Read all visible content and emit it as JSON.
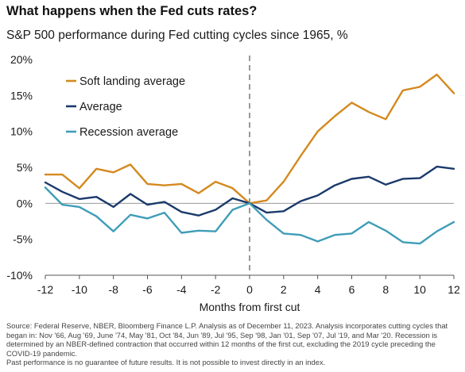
{
  "title": "What happens when the Fed cuts rates?",
  "subtitle": "S&P 500 performance during Fed cutting cycles since 1965, %",
  "footnote": [
    "Source: Federal Reserve, NBER, Bloomberg Finance L.P. Analysis as of December 11, 2023. Analysis incorporates cutting cycles that began in: Nov '66, Aug '69, June '74, May '81, Oct '84, Jun '89, Jul '95, Sep '98, Jan '01, Sep '07, Jul '19, and Mar '20. Recession is determined by an NBER-defined contraction that occurred within 12 months of the first cut, excluding the 2019 cycle preceding the COVID-19 pandemic.",
    "Past performance is no guarantee of future results. It is not possible to invest directly in an index."
  ],
  "chart_data": {
    "type": "line",
    "xlabel": "Months from first cut",
    "ylabel": "",
    "xlim": [
      -12,
      12
    ],
    "ylim": [
      -10,
      20
    ],
    "x": [
      -12,
      -11,
      -10,
      -9,
      -8,
      -7,
      -6,
      -5,
      -4,
      -3,
      -2,
      -1,
      0,
      1,
      2,
      3,
      4,
      5,
      6,
      7,
      8,
      9,
      10,
      11,
      12
    ],
    "x_ticks": [
      "-12",
      "-10",
      "-8",
      "-6",
      "-4",
      "-2",
      "0",
      "2",
      "4",
      "6",
      "8",
      "10",
      "12"
    ],
    "y_ticks": [
      "20%",
      "15%",
      "10%",
      "5%",
      "0%",
      "-5%",
      "-10%"
    ],
    "grid": false,
    "zero_line": true,
    "vertical_marker": {
      "x": 0,
      "style": "dashed"
    },
    "legend_position": "top-left",
    "series": [
      {
        "name": "Soft landing average",
        "color": "#d4891f",
        "values": [
          4.0,
          4.0,
          2.1,
          4.8,
          4.3,
          5.4,
          2.7,
          2.5,
          2.7,
          1.4,
          3.0,
          2.1,
          0.0,
          0.4,
          3.0,
          6.6,
          10.0,
          12.1,
          14.0,
          12.7,
          11.7,
          15.7,
          16.2,
          17.9,
          15.3
        ]
      },
      {
        "name": "Average",
        "color": "#1b3a6b",
        "values": [
          2.9,
          1.6,
          0.6,
          0.9,
          -0.5,
          1.3,
          -0.2,
          0.2,
          -1.2,
          -1.7,
          -0.9,
          0.7,
          0.0,
          -1.3,
          -1.1,
          0.3,
          1.1,
          2.5,
          3.4,
          3.7,
          2.6,
          3.4,
          3.5,
          5.1,
          4.8
        ]
      },
      {
        "name": "Recession average",
        "color": "#3f9db8",
        "values": [
          2.2,
          -0.2,
          -0.5,
          -1.8,
          -3.9,
          -1.6,
          -2.1,
          -1.3,
          -4.1,
          -3.8,
          -3.9,
          -0.9,
          0.0,
          -2.3,
          -4.2,
          -4.4,
          -5.3,
          -4.4,
          -4.2,
          -2.6,
          -3.8,
          -5.4,
          -5.6,
          -3.9,
          -2.6
        ]
      }
    ]
  }
}
